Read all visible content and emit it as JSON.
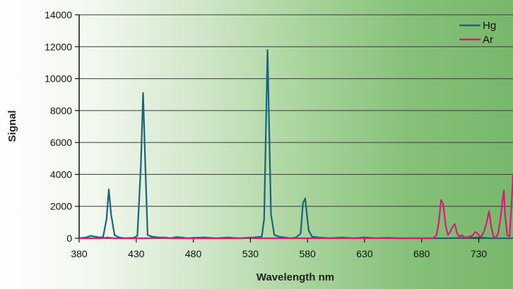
{
  "chart_data": {
    "type": "line",
    "title": "",
    "xlabel": "Wavelength nm",
    "ylabel": "Signal",
    "xlim": [
      380,
      760
    ],
    "ylim": [
      0,
      14000
    ],
    "x_ticks": [
      380,
      430,
      480,
      530,
      580,
      630,
      680,
      730
    ],
    "y_ticks": [
      0,
      2000,
      4000,
      6000,
      8000,
      10000,
      12000,
      14000
    ],
    "grid": "horizontal",
    "legend_position": "top-right",
    "series": [
      {
        "name": "Hg",
        "color": "#1a6478",
        "points": [
          [
            380,
            0
          ],
          [
            386,
            50
          ],
          [
            390,
            150
          ],
          [
            394,
            100
          ],
          [
            398,
            50
          ],
          [
            401,
            80
          ],
          [
            404,
            1200
          ],
          [
            406,
            3050
          ],
          [
            408,
            1500
          ],
          [
            411,
            200
          ],
          [
            415,
            50
          ],
          [
            420,
            0
          ],
          [
            428,
            30
          ],
          [
            431,
            150
          ],
          [
            434,
            4500
          ],
          [
            436,
            9100
          ],
          [
            438,
            4500
          ],
          [
            440,
            200
          ],
          [
            444,
            100
          ],
          [
            450,
            50
          ],
          [
            456,
            50
          ],
          [
            460,
            0
          ],
          [
            465,
            80
          ],
          [
            470,
            50
          ],
          [
            475,
            0
          ],
          [
            480,
            30
          ],
          [
            490,
            50
          ],
          [
            500,
            0
          ],
          [
            510,
            50
          ],
          [
            520,
            0
          ],
          [
            530,
            30
          ],
          [
            540,
            100
          ],
          [
            542,
            1200
          ],
          [
            545,
            11800
          ],
          [
            548,
            1500
          ],
          [
            551,
            200
          ],
          [
            555,
            100
          ],
          [
            560,
            50
          ],
          [
            565,
            0
          ],
          [
            570,
            50
          ],
          [
            574,
            300
          ],
          [
            576,
            2200
          ],
          [
            578,
            2500
          ],
          [
            581,
            500
          ],
          [
            584,
            100
          ],
          [
            590,
            50
          ],
          [
            600,
            0
          ],
          [
            610,
            50
          ],
          [
            620,
            0
          ],
          [
            630,
            50
          ],
          [
            640,
            0
          ],
          [
            650,
            30
          ],
          [
            660,
            0
          ],
          [
            700,
            0
          ],
          [
            730,
            50
          ],
          [
            740,
            0
          ],
          [
            760,
            0
          ]
        ]
      },
      {
        "name": "Ar",
        "color": "#d81b7a",
        "points": [
          [
            380,
            0
          ],
          [
            400,
            0
          ],
          [
            405,
            50
          ],
          [
            410,
            0
          ],
          [
            440,
            0
          ],
          [
            450,
            50
          ],
          [
            460,
            0
          ],
          [
            500,
            0
          ],
          [
            520,
            0
          ],
          [
            530,
            50
          ],
          [
            535,
            0
          ],
          [
            550,
            0
          ],
          [
            580,
            0
          ],
          [
            600,
            0
          ],
          [
            640,
            0
          ],
          [
            660,
            0
          ],
          [
            680,
            0
          ],
          [
            690,
            0
          ],
          [
            693,
            200
          ],
          [
            695,
            1000
          ],
          [
            697,
            2400
          ],
          [
            699,
            2100
          ],
          [
            701,
            800
          ],
          [
            703,
            200
          ],
          [
            705,
            400
          ],
          [
            707,
            700
          ],
          [
            709,
            900
          ],
          [
            711,
            300
          ],
          [
            713,
            100
          ],
          [
            715,
            200
          ],
          [
            718,
            50
          ],
          [
            722,
            100
          ],
          [
            725,
            200
          ],
          [
            727,
            400
          ],
          [
            729,
            300
          ],
          [
            731,
            100
          ],
          [
            733,
            200
          ],
          [
            735,
            500
          ],
          [
            737,
            1000
          ],
          [
            739,
            1700
          ],
          [
            741,
            700
          ],
          [
            743,
            100
          ],
          [
            745,
            50
          ],
          [
            747,
            300
          ],
          [
            749,
            1200
          ],
          [
            751,
            2500
          ],
          [
            752,
            3000
          ],
          [
            753,
            1500
          ],
          [
            755,
            200
          ],
          [
            757,
            100
          ],
          [
            759,
            2500
          ],
          [
            760,
            4000
          ]
        ]
      }
    ]
  }
}
